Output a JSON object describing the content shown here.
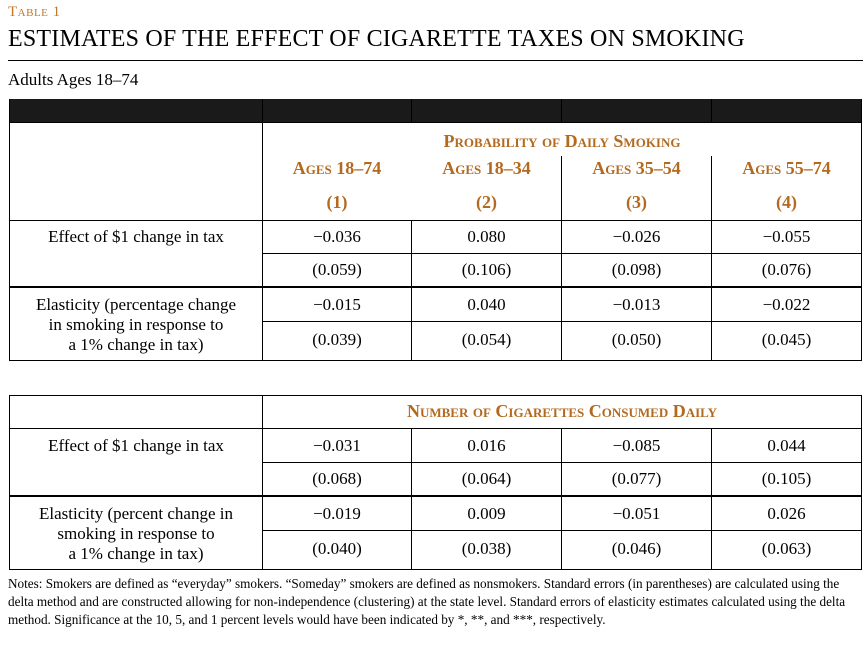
{
  "table_label": "Table 1",
  "title": "ESTIMATES OF THE EFFECT OF CIGARETTE TAXES ON SMOKING",
  "subtitle": "Adults Ages 18–74",
  "panel_a": {
    "header": "Probability of Daily Smoking",
    "columns": [
      {
        "label": "Ages 18–74",
        "num": "(1)"
      },
      {
        "label": "Ages 18–34",
        "num": "(2)"
      },
      {
        "label": "Ages 35–54",
        "num": "(3)"
      },
      {
        "label": "Ages 55–74",
        "num": "(4)"
      }
    ],
    "rows": [
      {
        "label": "Effect of $1 change in tax",
        "estimates": [
          "−0.036",
          "0.080",
          "−0.026",
          "−0.055"
        ],
        "errors": [
          "(0.059)",
          "(0.106)",
          "(0.098)",
          "(0.076)"
        ]
      },
      {
        "label_lines": [
          "Elasticity (percentage change",
          "in smoking in response to",
          "a 1% change in tax)"
        ],
        "estimates": [
          "−0.015",
          "0.040",
          "−0.013",
          "−0.022"
        ],
        "errors": [
          "(0.039)",
          "(0.054)",
          "(0.050)",
          "(0.045)"
        ]
      }
    ]
  },
  "panel_b": {
    "header": "Number of Cigarettes Consumed Daily",
    "rows": [
      {
        "label": "Effect of $1 change in tax",
        "estimates": [
          "−0.031",
          "0.016",
          "−0.085",
          "0.044"
        ],
        "errors": [
          "(0.068)",
          "(0.064)",
          "(0.077)",
          "(0.105)"
        ]
      },
      {
        "label_lines": [
          "Elasticity (percent change in",
          "smoking in response to",
          "a 1% change in tax)"
        ],
        "estimates": [
          "−0.019",
          "0.009",
          "−0.051",
          "0.026"
        ],
        "errors": [
          "(0.040)",
          "(0.038)",
          "(0.046)",
          "(0.063)"
        ]
      }
    ]
  },
  "notes": "Notes: Smokers are defined as “everyday” smokers. “Someday” smokers are defined as nonsmokers. Standard errors (in parentheses) are calculated using the delta method and are constructed allowing for non-independence (clustering) at the state level. Standard errors of elasticity estimates calculated using the delta method. Significance at the 10, 5, and 1 percent levels would have been indicated by *, **, and ***, respectively."
}
